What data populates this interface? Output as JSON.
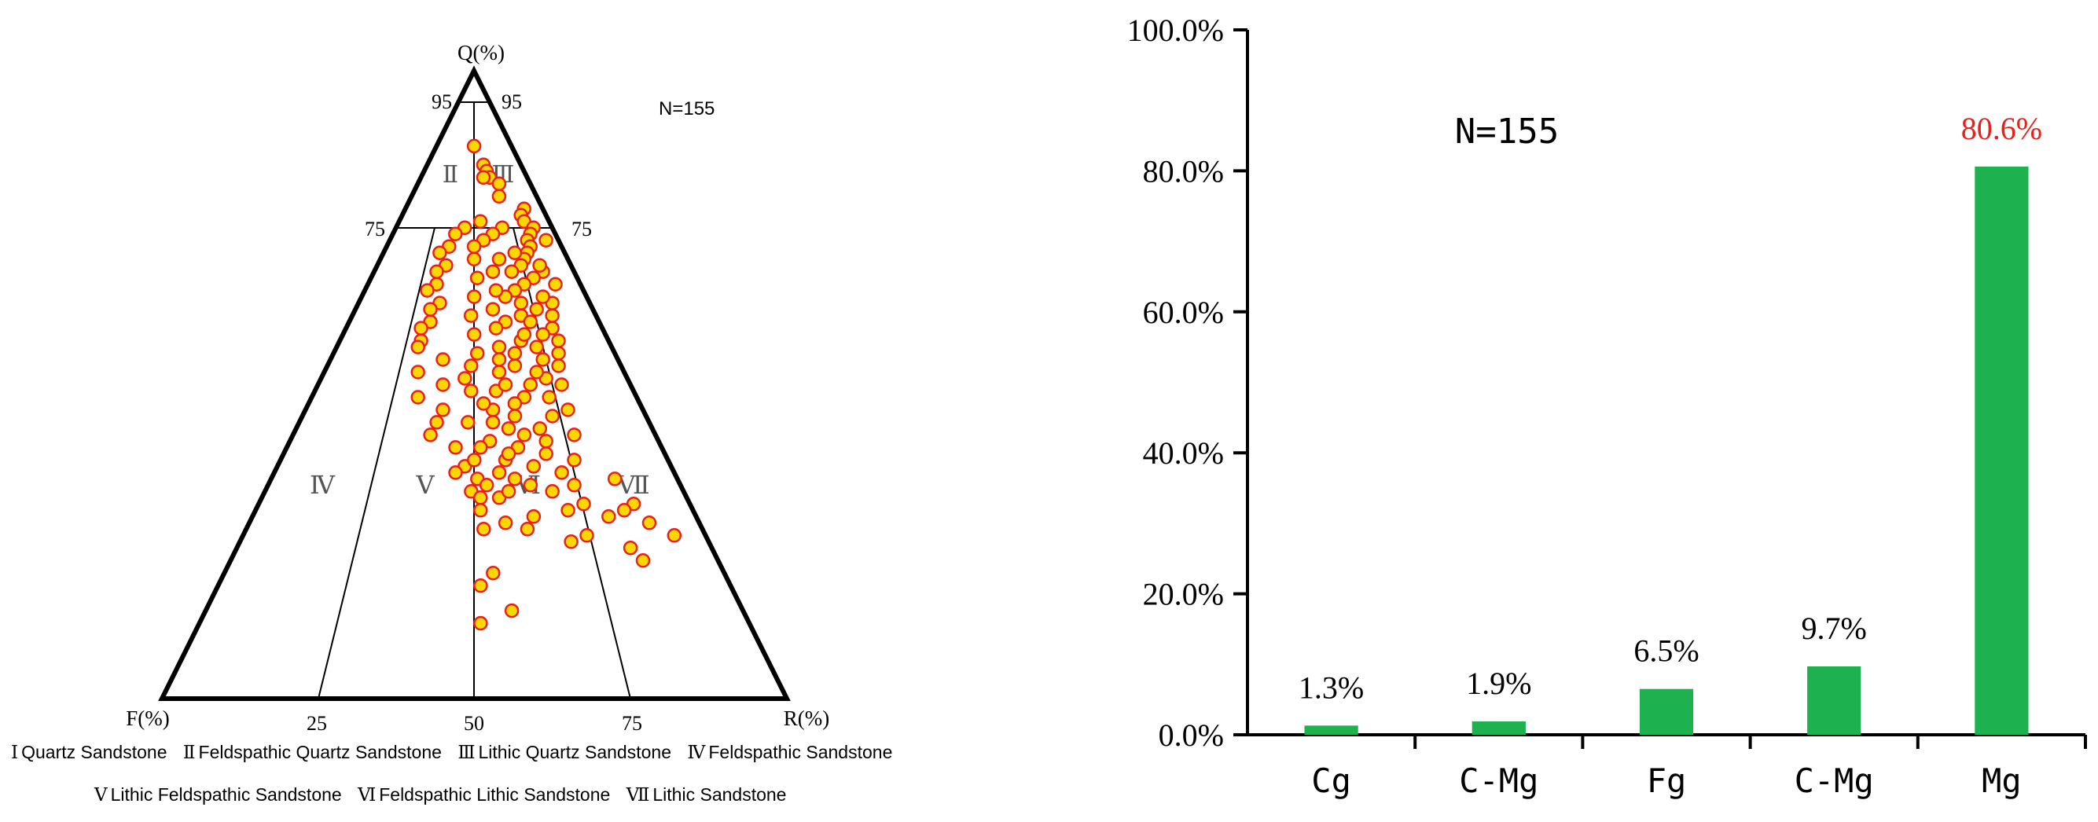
{
  "chart_data": [
    {
      "type": "scatter",
      "subtype": "ternary QFR classification diagram",
      "apex_labels": {
        "top": "Q(%)",
        "left": "F(%)",
        "right": "R(%)"
      },
      "n_label": "N=155",
      "q_ticks": {
        "left": [
          "95",
          "75"
        ],
        "right": [
          "95",
          "75"
        ]
      },
      "base_ticks": [
        "25",
        "50",
        "75"
      ],
      "fields": [
        "Ⅱ",
        "Ⅲ",
        "Ⅳ",
        "Ⅴ",
        "Ⅵ",
        "Ⅶ"
      ],
      "legend_line1": [
        {
          "numeral": "Ⅰ",
          "name": "Quartz Sandstone"
        },
        {
          "numeral": "Ⅱ",
          "name": "Feldspathic Quartz Sandstone"
        },
        {
          "numeral": "Ⅲ",
          "name": "Lithic Quartz Sandstone"
        },
        {
          "numeral": "Ⅳ",
          "name": "Feldspathic Sandstone"
        }
      ],
      "legend_line2": [
        {
          "numeral": "Ⅴ",
          "name": "Lithic Feldspathic Sandstone"
        },
        {
          "numeral": "Ⅵ",
          "name": "Feldspathic Lithic Sandstone"
        },
        {
          "numeral": "Ⅶ",
          "name": "Lithic Sandstone"
        }
      ],
      "point_fill": "#FFD700",
      "point_stroke": "#E8201A",
      "points_qfr": [
        [
          88,
          6,
          6
        ],
        [
          85,
          6,
          9
        ],
        [
          84,
          6,
          10
        ],
        [
          83,
          6,
          11
        ],
        [
          83,
          7,
          10
        ],
        [
          82,
          5,
          13
        ],
        [
          80,
          6,
          14
        ],
        [
          78,
          3,
          19
        ],
        [
          77,
          4,
          19
        ],
        [
          76,
          4,
          20
        ],
        [
          75,
          3,
          22
        ],
        [
          74,
          4,
          22
        ],
        [
          73,
          2,
          25
        ],
        [
          73,
          5,
          22
        ],
        [
          72,
          5,
          23
        ],
        [
          71,
          6,
          23
        ],
        [
          70,
          7,
          23
        ],
        [
          69,
          8,
          23
        ],
        [
          68,
          10,
          22
        ],
        [
          68,
          5,
          27
        ],
        [
          67,
          7,
          26
        ],
        [
          66,
          9,
          25
        ],
        [
          65,
          11,
          24
        ],
        [
          64,
          13,
          23
        ],
        [
          63,
          6,
          31
        ],
        [
          62,
          9,
          29
        ],
        [
          61,
          12,
          27
        ],
        [
          60,
          15,
          25
        ],
        [
          59,
          8,
          33
        ],
        [
          58,
          10,
          32
        ],
        [
          57,
          14,
          29
        ],
        [
          56,
          18,
          26
        ],
        [
          55,
          9,
          36
        ],
        [
          54,
          12,
          34
        ],
        [
          53,
          17,
          30
        ],
        [
          52,
          20,
          28
        ],
        [
          51,
          13,
          36
        ],
        [
          50,
          16,
          34
        ],
        [
          49,
          22,
          29
        ],
        [
          48,
          18,
          34
        ],
        [
          47,
          20,
          33
        ],
        [
          46,
          24,
          30
        ],
        [
          45,
          15,
          40
        ],
        [
          44,
          25,
          31
        ],
        [
          43,
          18,
          39
        ],
        [
          42,
          21,
          37
        ],
        [
          41,
          27,
          32
        ],
        [
          40,
          23,
          37
        ],
        [
          39,
          19,
          42
        ],
        [
          38,
          26,
          36
        ],
        [
          37,
          22,
          41
        ],
        [
          36,
          28,
          36
        ],
        [
          35,
          32,
          33
        ],
        [
          34,
          24,
          42
        ],
        [
          33,
          21,
          46
        ],
        [
          32,
          30,
          38
        ],
        [
          75,
          8,
          17
        ],
        [
          74,
          10,
          16
        ],
        [
          73,
          12,
          15
        ],
        [
          72,
          14,
          14
        ],
        [
          71,
          8,
          21
        ],
        [
          70,
          11,
          19
        ],
        [
          70,
          15,
          15
        ],
        [
          69,
          5,
          26
        ],
        [
          68,
          13,
          19
        ],
        [
          67,
          16,
          17
        ],
        [
          66,
          4,
          30
        ],
        [
          65,
          14,
          21
        ],
        [
          64,
          18,
          18
        ],
        [
          64,
          7,
          29
        ],
        [
          63,
          11,
          26
        ],
        [
          62,
          16,
          22
        ],
        [
          61,
          20,
          19
        ],
        [
          61,
          7,
          32
        ],
        [
          60,
          11,
          29
        ],
        [
          59,
          17,
          24
        ],
        [
          58,
          21,
          21
        ],
        [
          58,
          13,
          29
        ],
        [
          57,
          8,
          35
        ],
        [
          56,
          12,
          32
        ],
        [
          55,
          16,
          29
        ],
        [
          55,
          22,
          23
        ],
        [
          54,
          19,
          27
        ],
        [
          53,
          10,
          37
        ],
        [
          53,
          24,
          23
        ],
        [
          52,
          14,
          34
        ],
        [
          51,
          26,
          23
        ],
        [
          50,
          11,
          39
        ],
        [
          50,
          20,
          30
        ],
        [
          49,
          26,
          25
        ],
        [
          48,
          14,
          38
        ],
        [
          47,
          25,
          28
        ],
        [
          46,
          12,
          42
        ],
        [
          45,
          21,
          34
        ],
        [
          44,
          29,
          27
        ],
        [
          43,
          23,
          34
        ],
        [
          42,
          13,
          45
        ],
        [
          41,
          18,
          41
        ],
        [
          40,
          29,
          31
        ],
        [
          39,
          25,
          36
        ],
        [
          38,
          15,
          47
        ],
        [
          37,
          33,
          30
        ],
        [
          36,
          18,
          46
        ],
        [
          35,
          26,
          39
        ],
        [
          34,
          17,
          49
        ],
        [
          33,
          28,
          39
        ],
        [
          76,
          11,
          13
        ],
        [
          75,
          14,
          11
        ],
        [
          74,
          16,
          10
        ],
        [
          72,
          18,
          10
        ],
        [
          71,
          20,
          9
        ],
        [
          69,
          20,
          11
        ],
        [
          68,
          22,
          10
        ],
        [
          66,
          23,
          11
        ],
        [
          65,
          25,
          10
        ],
        [
          63,
          24,
          13
        ],
        [
          62,
          26,
          12
        ],
        [
          60,
          27,
          13
        ],
        [
          59,
          29,
          12
        ],
        [
          57,
          30,
          13
        ],
        [
          56,
          31,
          13
        ],
        [
          54,
          28,
          18
        ],
        [
          52,
          33,
          15
        ],
        [
          50,
          30,
          20
        ],
        [
          48,
          35,
          17
        ],
        [
          46,
          32,
          22
        ],
        [
          44,
          34,
          22
        ],
        [
          42,
          36,
          22
        ],
        [
          40,
          33,
          27
        ],
        [
          38,
          31,
          31
        ],
        [
          36,
          35,
          29
        ],
        [
          34,
          31,
          35
        ],
        [
          33,
          34,
          33
        ],
        [
          32,
          33,
          35
        ],
        [
          31,
          9,
          60
        ],
        [
          30,
          11,
          59
        ],
        [
          29,
          14,
          57
        ],
        [
          28,
          8,
          64
        ],
        [
          26,
          5,
          69
        ],
        [
          25,
          22,
          53
        ],
        [
          24,
          13,
          63
        ],
        [
          22,
          12,
          66
        ],
        [
          20,
          37,
          43
        ],
        [
          18,
          40,
          42
        ],
        [
          14,
          37,
          49
        ],
        [
          12,
          43,
          45
        ],
        [
          28,
          31,
          41
        ],
        [
          27,
          28,
          45
        ],
        [
          29,
          26,
          45
        ],
        [
          30,
          20,
          50
        ],
        [
          31,
          17,
          52
        ],
        [
          26,
          19,
          55
        ],
        [
          30,
          34,
          36
        ],
        [
          27,
          35,
          38
        ],
        [
          35,
          10,
          55
        ]
      ]
    },
    {
      "type": "bar",
      "categories": [
        "Cg",
        "C-Mg",
        "Fg",
        "C-Mg",
        "Mg"
      ],
      "values": [
        1.3,
        1.9,
        6.5,
        9.7,
        80.6
      ],
      "value_labels": [
        "1.3%",
        "1.9%",
        "6.5%",
        "9.7%",
        "80.6%"
      ],
      "y_tick_labels": [
        "0.0%",
        "20.0%",
        "40.0%",
        "60.0%",
        "80.0%",
        "100.0%"
      ],
      "ylim": [
        0,
        100
      ],
      "n_label": "N=155",
      "bar_color": "#1DB150",
      "highlight_label_color": "#E8201A",
      "label_color": "#000000"
    }
  ]
}
